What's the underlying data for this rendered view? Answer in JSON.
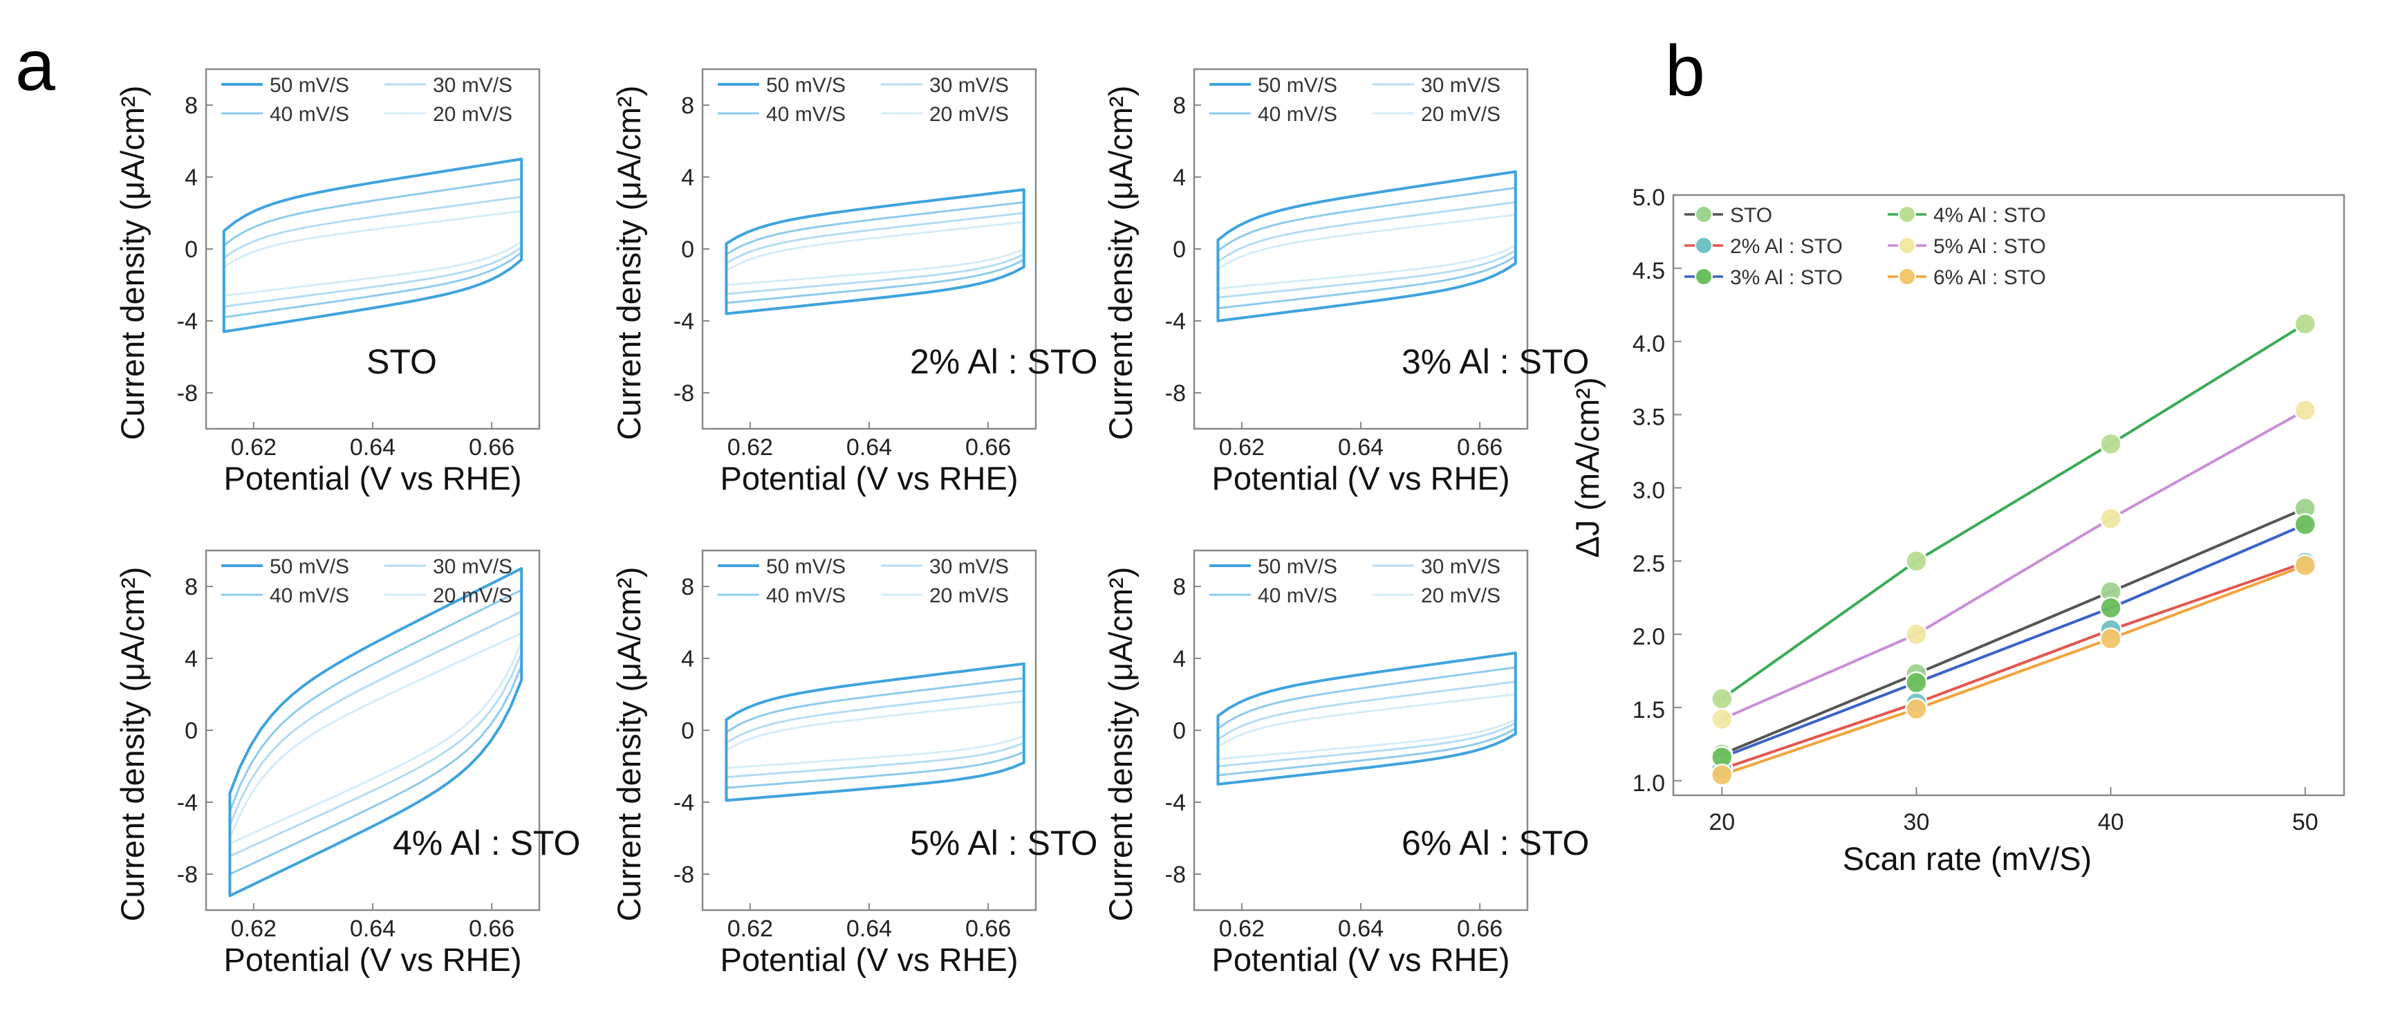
{
  "panel_labels": {
    "a": "a",
    "b": "b"
  },
  "colors": {
    "cv": [
      "#3ea3de",
      "#8fcbed",
      "#b4dcf2",
      "#d6ecf8"
    ]
  },
  "chart_data": [
    {
      "type": "line",
      "panel": "a",
      "label": "STO",
      "xlabel": "Potential (V vs RHE)",
      "ylabel": "Current density (μA/cm²)",
      "xlim": [
        0.612,
        0.668
      ],
      "ylim": [
        -10,
        10
      ],
      "xticks": [
        "0.62",
        "0.64",
        "0.66"
      ],
      "yticks": [
        "-8",
        "-4",
        "0",
        "4",
        "8"
      ],
      "x_range": [
        0.615,
        0.665
      ],
      "series": [
        {
          "name": "50 mV/S",
          "upper": [
            1.0,
            5.0
          ],
          "lower": [
            -4.6,
            -0.6
          ]
        },
        {
          "name": "40 mV/S",
          "upper": [
            0.2,
            3.9
          ],
          "lower": [
            -3.8,
            -0.2
          ]
        },
        {
          "name": "30 mV/S",
          "upper": [
            -0.5,
            2.9
          ],
          "lower": [
            -3.2,
            0.1
          ]
        },
        {
          "name": "20 mV/S",
          "upper": [
            -1.0,
            2.1
          ],
          "lower": [
            -2.6,
            0.4
          ]
        }
      ]
    },
    {
      "type": "line",
      "panel": "a",
      "label": "2% Al : STO",
      "xlabel": "Potential (V vs RHE)",
      "ylabel": "Current density (μA/cm²)",
      "xlim": [
        0.612,
        0.668
      ],
      "ylim": [
        -10,
        10
      ],
      "xticks": [
        "0.62",
        "0.64",
        "0.66"
      ],
      "yticks": [
        "-8",
        "-4",
        "0",
        "4",
        "8"
      ],
      "x_range": [
        0.616,
        0.666
      ],
      "series": [
        {
          "name": "50 mV/S",
          "upper": [
            0.3,
            3.3
          ],
          "lower": [
            -3.6,
            -1.0
          ]
        },
        {
          "name": "40 mV/S",
          "upper": [
            -0.3,
            2.6
          ],
          "lower": [
            -3.0,
            -0.6
          ]
        },
        {
          "name": "30 mV/S",
          "upper": [
            -0.8,
            2.0
          ],
          "lower": [
            -2.5,
            -0.3
          ]
        },
        {
          "name": "20 mV/S",
          "upper": [
            -1.2,
            1.5
          ],
          "lower": [
            -2.0,
            0.0
          ]
        }
      ]
    },
    {
      "type": "line",
      "panel": "a",
      "label": "3% Al : STO",
      "xlabel": "Potential (V vs RHE)",
      "ylabel": "Current density (μA/cm²)",
      "xlim": [
        0.612,
        0.668
      ],
      "ylim": [
        -10,
        10
      ],
      "xticks": [
        "0.62",
        "0.64",
        "0.66"
      ],
      "yticks": [
        "-8",
        "-4",
        "0",
        "4",
        "8"
      ],
      "x_range": [
        0.616,
        0.666
      ],
      "series": [
        {
          "name": "50 mV/S",
          "upper": [
            0.5,
            4.3
          ],
          "lower": [
            -4.0,
            -0.8
          ]
        },
        {
          "name": "40 mV/S",
          "upper": [
            -0.1,
            3.4
          ],
          "lower": [
            -3.3,
            -0.4
          ]
        },
        {
          "name": "30 mV/S",
          "upper": [
            -0.7,
            2.6
          ],
          "lower": [
            -2.7,
            -0.1
          ]
        },
        {
          "name": "20 mV/S",
          "upper": [
            -1.1,
            1.9
          ],
          "lower": [
            -2.2,
            0.2
          ]
        }
      ]
    },
    {
      "type": "line",
      "panel": "a",
      "label": "4% Al : STO",
      "xlabel": "Potential (V vs RHE)",
      "ylabel": "Current density (μA/cm²)",
      "xlim": [
        0.612,
        0.668
      ],
      "ylim": [
        -10,
        10
      ],
      "xticks": [
        "0.62",
        "0.64",
        "0.66"
      ],
      "yticks": [
        "-8",
        "-4",
        "0",
        "4",
        "8"
      ],
      "x_range": [
        0.616,
        0.665
      ],
      "series": [
        {
          "name": "50 mV/S",
          "upper": [
            -3.5,
            9.0
          ],
          "lower": [
            -9.2,
            2.8
          ]
        },
        {
          "name": "40 mV/S",
          "upper": [
            -4.5,
            7.8
          ],
          "lower": [
            -8.0,
            3.6
          ]
        },
        {
          "name": "30 mV/S",
          "upper": [
            -5.3,
            6.6
          ],
          "lower": [
            -7.0,
            4.3
          ]
        },
        {
          "name": "20 mV/S",
          "upper": [
            -6.0,
            5.4
          ],
          "lower": [
            -6.3,
            4.9
          ]
        }
      ]
    },
    {
      "type": "line",
      "panel": "a",
      "label": "5% Al : STO",
      "xlabel": "Potential (V vs RHE)",
      "ylabel": "Current density (μA/cm²)",
      "xlim": [
        0.612,
        0.668
      ],
      "ylim": [
        -10,
        10
      ],
      "xticks": [
        "0.62",
        "0.64",
        "0.66"
      ],
      "yticks": [
        "-8",
        "-4",
        "0",
        "4",
        "8"
      ],
      "x_range": [
        0.616,
        0.666
      ],
      "series": [
        {
          "name": "50 mV/S",
          "upper": [
            0.6,
            3.7
          ],
          "lower": [
            -3.9,
            -1.8
          ]
        },
        {
          "name": "40 mV/S",
          "upper": [
            -0.1,
            2.9
          ],
          "lower": [
            -3.2,
            -1.2
          ]
        },
        {
          "name": "30 mV/S",
          "upper": [
            -0.7,
            2.2
          ],
          "lower": [
            -2.6,
            -0.7
          ]
        },
        {
          "name": "20 mV/S",
          "upper": [
            -1.1,
            1.6
          ],
          "lower": [
            -2.1,
            -0.3
          ]
        }
      ]
    },
    {
      "type": "line",
      "panel": "a",
      "label": "6% Al : STO",
      "xlabel": "Potential (V vs RHE)",
      "ylabel": "Current density (μA/cm²)",
      "xlim": [
        0.612,
        0.668
      ],
      "ylim": [
        -10,
        10
      ],
      "xticks": [
        "0.62",
        "0.64",
        "0.66"
      ],
      "yticks": [
        "-8",
        "-4",
        "0",
        "4",
        "8"
      ],
      "x_range": [
        0.616,
        0.666
      ],
      "series": [
        {
          "name": "50 mV/S",
          "upper": [
            0.8,
            4.3
          ],
          "lower": [
            -3.0,
            -0.2
          ]
        },
        {
          "name": "40 mV/S",
          "upper": [
            0.1,
            3.5
          ],
          "lower": [
            -2.5,
            0.1
          ]
        },
        {
          "name": "30 mV/S",
          "upper": [
            -0.5,
            2.7
          ],
          "lower": [
            -2.0,
            0.4
          ]
        },
        {
          "name": "20 mV/S",
          "upper": [
            -0.9,
            2.0
          ],
          "lower": [
            -1.6,
            0.6
          ]
        }
      ]
    },
    {
      "type": "line",
      "panel": "b",
      "xlabel": "Scan rate (mV/S)",
      "ylabel": "ΔJ (mA/cm²)",
      "x": [
        20,
        30,
        40,
        50
      ],
      "xlim": [
        17.5,
        52
      ],
      "ylim": [
        0.9,
        5.0
      ],
      "xticks": [
        "20",
        "30",
        "40",
        "50"
      ],
      "yticks": [
        "1.0",
        "1.5",
        "2.0",
        "2.5",
        "3.0",
        "3.5",
        "4.0",
        "4.5",
        "5.0"
      ],
      "legend": "top-left",
      "series": [
        {
          "name": "STO",
          "line_color": "#555555",
          "marker_color": "#9fd48f",
          "values": [
            1.18,
            1.73,
            2.29,
            2.86
          ]
        },
        {
          "name": "2% Al : STO",
          "line_color": "#e3564f",
          "marker_color": "#6fc2c4",
          "values": [
            1.08,
            1.53,
            2.03,
            2.49
          ]
        },
        {
          "name": "3% Al : STO",
          "line_color": "#3a63c9",
          "marker_color": "#6bbf5c",
          "values": [
            1.16,
            1.67,
            2.18,
            2.75
          ]
        },
        {
          "name": "4% Al : STO",
          "line_color": "#3bab57",
          "marker_color": "#b9de92",
          "values": [
            1.56,
            2.5,
            3.3,
            4.12
          ]
        },
        {
          "name": "5% Al : STO",
          "line_color": "#c98fd6",
          "marker_color": "#f2e7a3",
          "values": [
            1.42,
            2.0,
            2.79,
            3.53
          ]
        },
        {
          "name": "6% Al : STO",
          "line_color": "#f2a43c",
          "marker_color": "#f3c66a",
          "values": [
            1.04,
            1.49,
            1.97,
            2.47
          ]
        }
      ]
    }
  ]
}
